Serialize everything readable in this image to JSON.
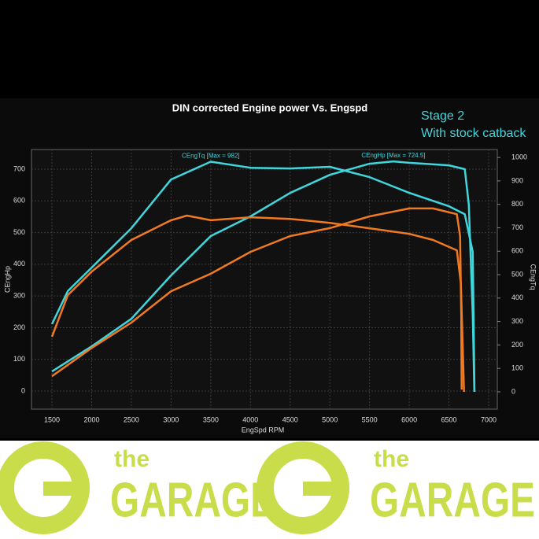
{
  "chart_data": {
    "type": "line",
    "title": "DIN corrected Engine power Vs. Engspd",
    "annotations": [
      "Stage 2",
      "With stock catback"
    ],
    "x_label": "EngSpd RPM",
    "y_label": "CEngHp",
    "y2_label": "CEngTq",
    "xlim": [
      1242,
      7109
    ],
    "ylim": [
      -57,
      762
    ],
    "y2lim": [
      -74,
      1034
    ],
    "xticks": [
      1500,
      2000,
      2500,
      3000,
      3500,
      4000,
      4500,
      5000,
      5500,
      6000,
      6500,
      7000
    ],
    "yticks": [
      0,
      100,
      200,
      300,
      400,
      500,
      600,
      700
    ],
    "y2ticks": [
      0,
      100,
      200,
      300,
      400,
      500,
      600,
      700,
      800,
      900,
      1000
    ],
    "grid": true,
    "series": [
      {
        "name": "CEngTq [Max = 982]",
        "color": "#3fd6dc",
        "axis": "y2",
        "x": [
          1500,
          1700,
          2000,
          2500,
          3000,
          3500,
          4000,
          4500,
          5000,
          5500,
          6000,
          6500,
          6700,
          6800,
          6822
        ],
        "values": [
          289,
          430,
          530,
          698,
          906,
          982,
          956,
          953,
          960,
          916,
          849,
          792,
          758,
          597,
          0
        ]
      },
      {
        "name": "CEngHp [Max = 724.5]",
        "color": "#3fd6dc",
        "x": [
          1500,
          2000,
          2500,
          3000,
          3500,
          4000,
          4500,
          5000,
          5500,
          5800,
          6000,
          6500,
          6700,
          6750,
          6800,
          6820
        ],
        "values": [
          62,
          141,
          228,
          365,
          489,
          551,
          625,
          682,
          717,
          724.5,
          720,
          712,
          700,
          588,
          241,
          0
        ]
      },
      {
        "color": "#f07a22",
        "axis": "y2",
        "x": [
          1500,
          1700,
          2000,
          2500,
          3000,
          3200,
          3500,
          4000,
          4500,
          5000,
          5500,
          6000,
          6300,
          6600,
          6650,
          6690
        ],
        "values": [
          235,
          413,
          513,
          648,
          732,
          752,
          732,
          745,
          738,
          721,
          698,
          674,
          648,
          604,
          463,
          0
        ]
      },
      {
        "color": "#f07a22",
        "x": [
          1500,
          2000,
          2500,
          3000,
          3500,
          4000,
          4500,
          5000,
          5500,
          6000,
          6300,
          6600,
          6640,
          6655,
          6660
        ],
        "values": [
          47,
          136,
          216,
          315,
          370,
          439,
          489,
          514,
          551,
          576,
          576,
          558,
          489,
          241,
          5
        ]
      }
    ]
  },
  "banner": {
    "logos": [
      {
        "small": "the",
        "big": "GARAGE"
      },
      {
        "small": "the",
        "big": "GARAGE"
      }
    ]
  }
}
